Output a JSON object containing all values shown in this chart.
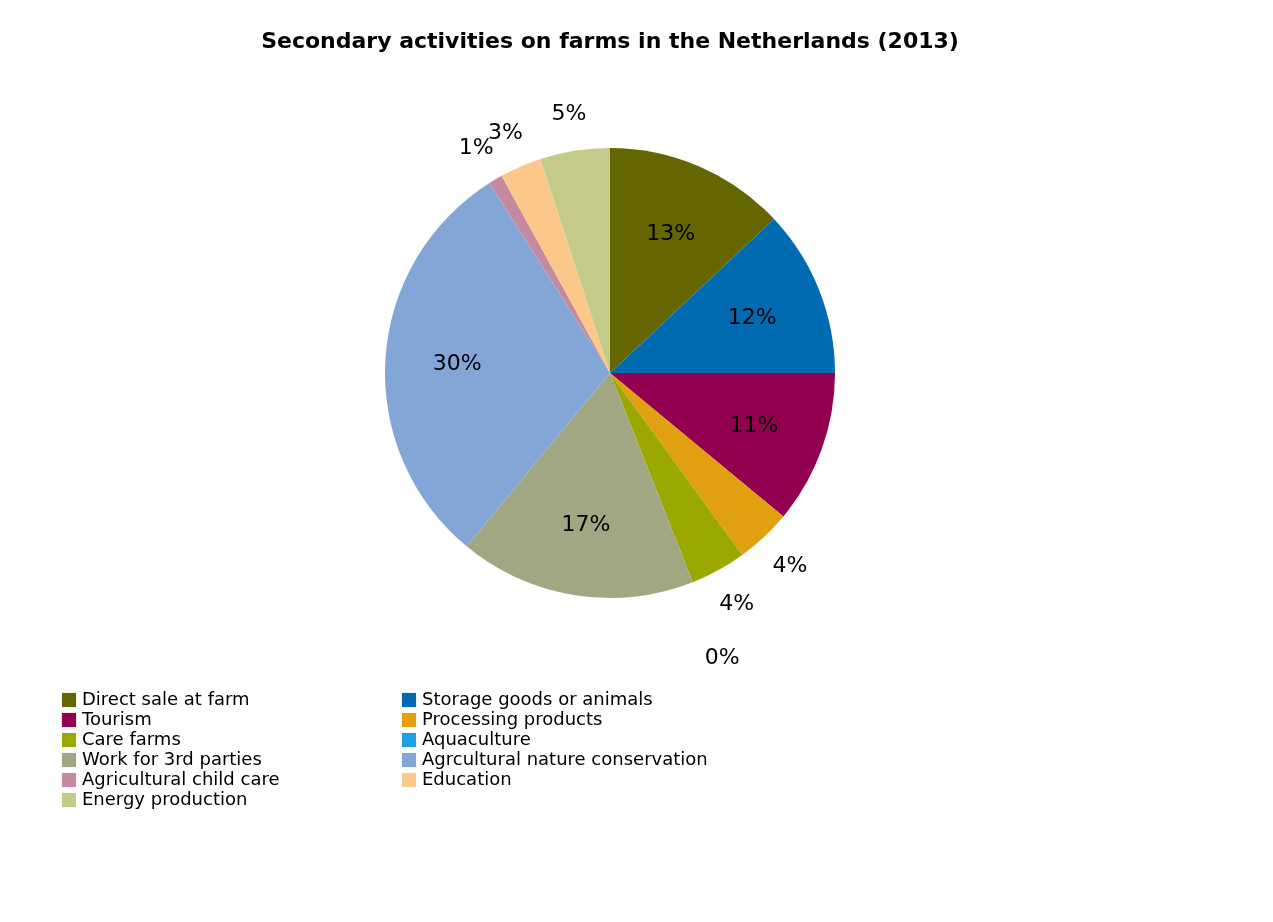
{
  "chart_data": {
    "type": "pie",
    "title": "Secondary activities on farms in the Netherlands (2013)",
    "categories": [
      "Direct sale at farm",
      "Storage goods or animals",
      "Tourism",
      "Processing products",
      "Care farms",
      "Aquaculture",
      "Work for 3rd parties",
      "Agrcultural nature conservation",
      "Agricultural child care",
      "Education",
      "Energy production"
    ],
    "values": [
      13,
      12,
      11,
      4,
      4,
      0,
      17,
      30,
      1,
      3,
      5
    ],
    "colors": [
      "#666600",
      "#006bb0",
      "#930050",
      "#e0a010",
      "#9aa800",
      "#20a0e0",
      "#a2a783",
      "#84a6d6",
      "#c48ba0",
      "#fcc88a",
      "#c4ca88"
    ],
    "value_labels": [
      "13%",
      "12%",
      "11%",
      "4%",
      "4%",
      "0%",
      "17%",
      "30%",
      "1%",
      "3%",
      "5%"
    ],
    "legend": "bottom"
  }
}
